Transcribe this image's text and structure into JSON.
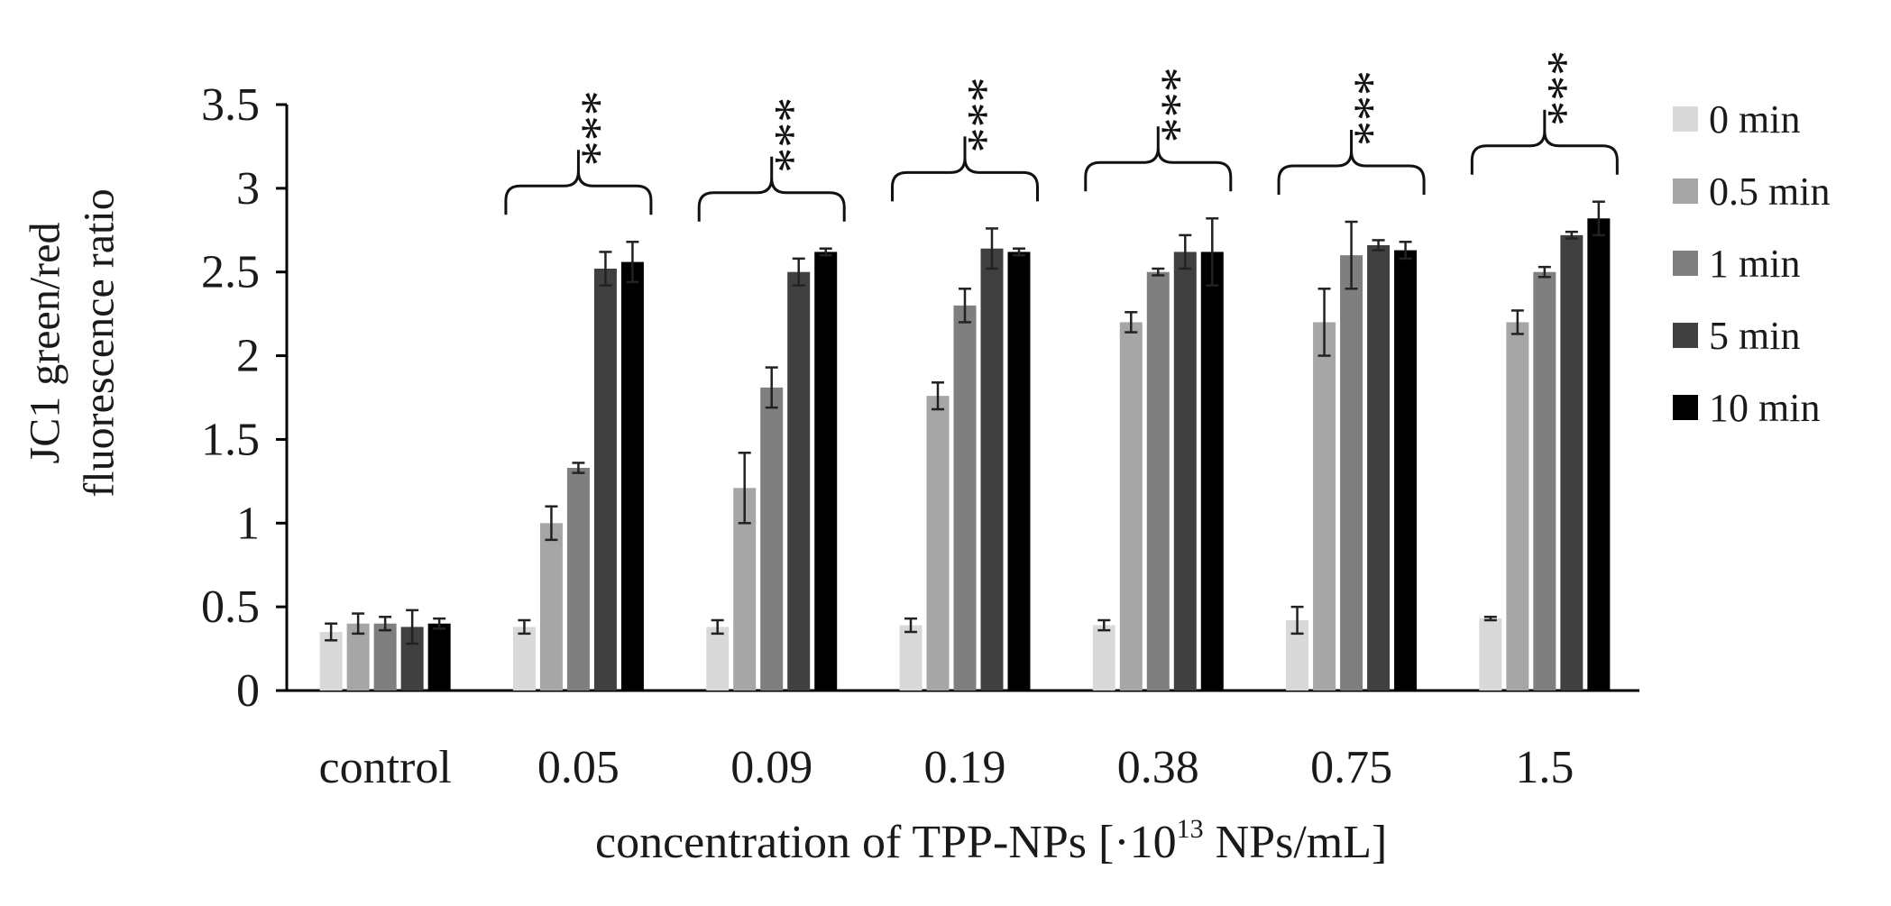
{
  "chart_data": {
    "type": "bar",
    "title": "",
    "ylabel_lines": [
      "JC1 green/red",
      "fluorescence ratio"
    ],
    "xlabel": {
      "prefix": "concentration of TPP-NPs [·10",
      "superscript": "13",
      "suffix": " NPs/mL]"
    },
    "ylim": [
      0,
      3.5
    ],
    "yticks": [
      "0",
      "0.5",
      "1",
      "1.5",
      "2",
      "2.5",
      "3",
      "3.5"
    ],
    "categories": [
      "control",
      "0.05",
      "0.09",
      "0.19",
      "0.38",
      "0.75",
      "1.5"
    ],
    "series": [
      {
        "name": "0 min",
        "color": "#d9d9d9",
        "values": [
          0.35,
          0.38,
          0.38,
          0.39,
          0.39,
          0.42,
          0.43
        ],
        "errors": [
          0.05,
          0.04,
          0.04,
          0.04,
          0.03,
          0.08,
          0.01
        ]
      },
      {
        "name": "0.5 min",
        "color": "#a6a6a6",
        "values": [
          0.4,
          1.0,
          1.21,
          1.76,
          2.2,
          2.2,
          2.2
        ],
        "errors": [
          0.06,
          0.1,
          0.21,
          0.08,
          0.06,
          0.2,
          0.07
        ]
      },
      {
        "name": "1 min",
        "color": "#7f7f7f",
        "values": [
          0.4,
          1.33,
          1.81,
          2.3,
          2.5,
          2.6,
          2.5
        ],
        "errors": [
          0.04,
          0.03,
          0.12,
          0.1,
          0.02,
          0.2,
          0.03
        ]
      },
      {
        "name": "5 min",
        "color": "#404040",
        "values": [
          0.38,
          2.52,
          2.5,
          2.64,
          2.62,
          2.66,
          2.72
        ],
        "errors": [
          0.1,
          0.1,
          0.08,
          0.12,
          0.1,
          0.03,
          0.02
        ]
      },
      {
        "name": "10 min",
        "color": "#000000",
        "values": [
          0.4,
          2.56,
          2.62,
          2.62,
          2.62,
          2.63,
          2.82
        ],
        "errors": [
          0.03,
          0.12,
          0.02,
          0.02,
          0.2,
          0.05,
          0.1
        ]
      }
    ],
    "significance": {
      "label": "***",
      "groups": [
        "0.05",
        "0.09",
        "0.19",
        "0.38",
        "0.75",
        "1.5"
      ]
    },
    "legend_position": "right"
  }
}
